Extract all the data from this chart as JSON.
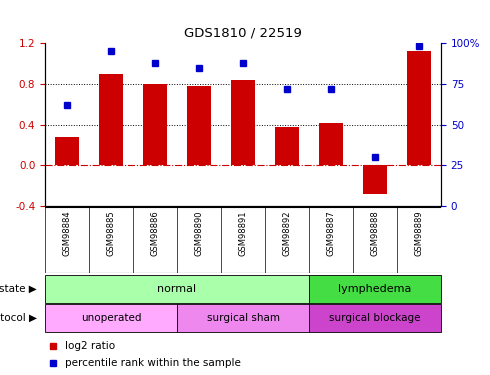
{
  "title": "GDS1810 / 22519",
  "samples": [
    "GSM98884",
    "GSM98885",
    "GSM98886",
    "GSM98890",
    "GSM98891",
    "GSM98892",
    "GSM98887",
    "GSM98888",
    "GSM98889"
  ],
  "log2_ratio": [
    0.28,
    0.9,
    0.8,
    0.78,
    0.84,
    0.38,
    0.42,
    -0.28,
    1.12
  ],
  "percentile_rank": [
    62,
    95,
    88,
    85,
    88,
    72,
    72,
    30,
    98
  ],
  "ylim_left": [
    -0.4,
    1.2
  ],
  "ylim_right": [
    0,
    100
  ],
  "yticks_left": [
    -0.4,
    0.0,
    0.4,
    0.8,
    1.2
  ],
  "yticks_right": [
    0,
    25,
    50,
    75,
    100
  ],
  "yticklabels_right": [
    "0",
    "25",
    "50",
    "75",
    "100%"
  ],
  "hlines": [
    0.4,
    0.8
  ],
  "bar_color": "#cc0000",
  "dot_color": "#0000cc",
  "disease_state_groups": [
    {
      "label": "normal",
      "start": 0,
      "end": 6,
      "color": "#aaffaa"
    },
    {
      "label": "lymphedema",
      "start": 6,
      "end": 9,
      "color": "#44dd44"
    }
  ],
  "protocol_groups": [
    {
      "label": "unoperated",
      "start": 0,
      "end": 3,
      "color": "#ffaaff"
    },
    {
      "label": "surgical sham",
      "start": 3,
      "end": 6,
      "color": "#ee88ee"
    },
    {
      "label": "surgical blockage",
      "start": 6,
      "end": 9,
      "color": "#cc44cc"
    }
  ],
  "legend_log2_color": "#cc0000",
  "legend_pct_color": "#0000cc",
  "bg_color": "#ffffff",
  "tick_area_color": "#c8c8c8"
}
